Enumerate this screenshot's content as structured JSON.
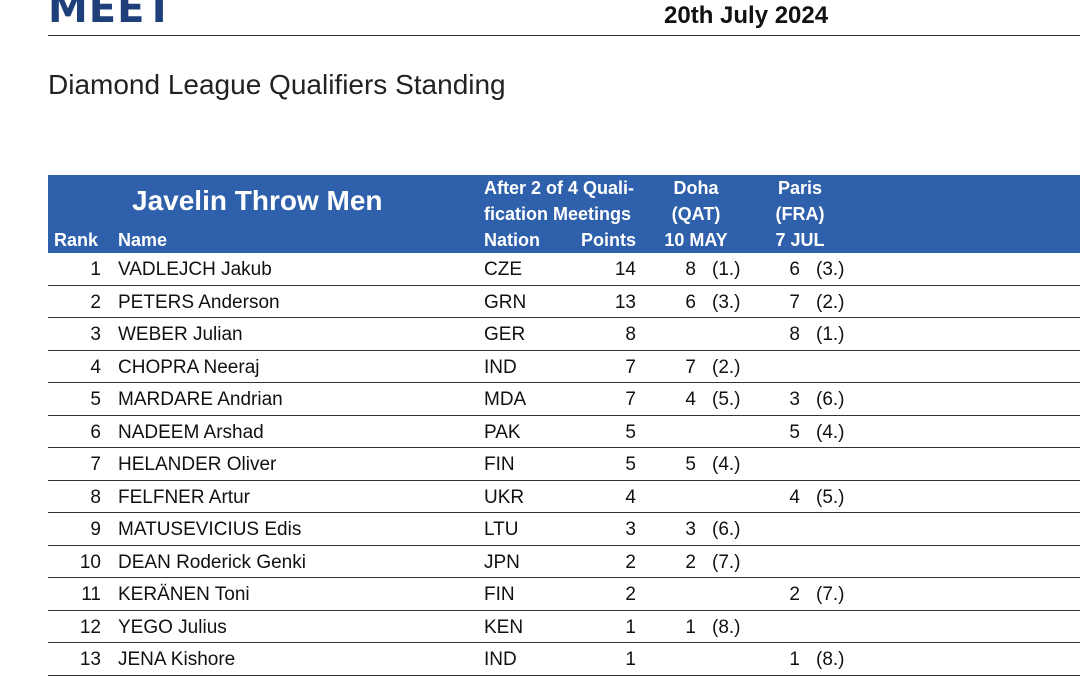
{
  "header": {
    "logo_text": "MEET",
    "date": "20th July 2024"
  },
  "document": {
    "title": "Diamond League Qualifiers Standing"
  },
  "table": {
    "event": "Javelin Throw Men",
    "columns": {
      "rank": "Rank",
      "name": "Name",
      "after_line1": "After 2 of 4 Quali-",
      "after_line2": "fication Meetings",
      "nation": "Nation",
      "points": "Points",
      "doha_line1": "Doha",
      "doha_line2": "(QAT)",
      "doha_date": "10 MAY",
      "paris_line1": "Paris",
      "paris_line2": "(FRA)",
      "paris_date": "7 JUL"
    },
    "rows": [
      {
        "rank": "1",
        "name": "VADLEJCH Jakub",
        "nation": "CZE",
        "points": "14",
        "doha_points": "8",
        "doha_place": "(1.)",
        "paris_points": "6",
        "paris_place": "(3.)"
      },
      {
        "rank": "2",
        "name": "PETERS Anderson",
        "nation": "GRN",
        "points": "13",
        "doha_points": "6",
        "doha_place": "(3.)",
        "paris_points": "7",
        "paris_place": "(2.)"
      },
      {
        "rank": "3",
        "name": "WEBER Julian",
        "nation": "GER",
        "points": "8",
        "doha_points": "",
        "doha_place": "",
        "paris_points": "8",
        "paris_place": "(1.)"
      },
      {
        "rank": "4",
        "name": "CHOPRA Neeraj",
        "nation": "IND",
        "points": "7",
        "doha_points": "7",
        "doha_place": "(2.)",
        "paris_points": "",
        "paris_place": ""
      },
      {
        "rank": "5",
        "name": "MARDARE Andrian",
        "nation": "MDA",
        "points": "7",
        "doha_points": "4",
        "doha_place": "(5.)",
        "paris_points": "3",
        "paris_place": "(6.)"
      },
      {
        "rank": "6",
        "name": "NADEEM Arshad",
        "nation": "PAK",
        "points": "5",
        "doha_points": "",
        "doha_place": "",
        "paris_points": "5",
        "paris_place": "(4.)"
      },
      {
        "rank": "7",
        "name": "HELANDER Oliver",
        "nation": "FIN",
        "points": "5",
        "doha_points": "5",
        "doha_place": "(4.)",
        "paris_points": "",
        "paris_place": ""
      },
      {
        "rank": "8",
        "name": "FELFNER Artur",
        "nation": "UKR",
        "points": "4",
        "doha_points": "",
        "doha_place": "",
        "paris_points": "4",
        "paris_place": "(5.)"
      },
      {
        "rank": "9",
        "name": "MATUSEVICIUS Edis",
        "nation": "LTU",
        "points": "3",
        "doha_points": "3",
        "doha_place": "(6.)",
        "paris_points": "",
        "paris_place": ""
      },
      {
        "rank": "10",
        "name": "DEAN Roderick Genki",
        "nation": "JPN",
        "points": "2",
        "doha_points": "2",
        "doha_place": "(7.)",
        "paris_points": "",
        "paris_place": ""
      },
      {
        "rank": "11",
        "name": "KERÄNEN Toni",
        "nation": "FIN",
        "points": "2",
        "doha_points": "",
        "doha_place": "",
        "paris_points": "2",
        "paris_place": "(7.)"
      },
      {
        "rank": "12",
        "name": "YEGO Julius",
        "nation": "KEN",
        "points": "1",
        "doha_points": "1",
        "doha_place": "(8.)",
        "paris_points": "",
        "paris_place": ""
      },
      {
        "rank": "13",
        "name": "JENA Kishore",
        "nation": "IND",
        "points": "1",
        "doha_points": "",
        "doha_place": "",
        "paris_points": "1",
        "paris_place": "(8.)"
      }
    ]
  },
  "colors": {
    "header_band": "#2e60ab",
    "logo": "#1f3f7a"
  }
}
